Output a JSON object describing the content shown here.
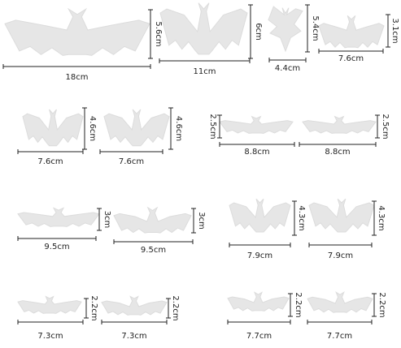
{
  "stickers": [
    {
      "name": "bat-large-18cm",
      "width_label": "18cm",
      "height_label": "5.6cm"
    },
    {
      "name": "bat-11cm",
      "width_label": "11cm",
      "height_label": "6cm"
    },
    {
      "name": "bat-4-4cm",
      "width_label": "4.4cm",
      "height_label": "5.4cm"
    },
    {
      "name": "bat-7-6cm-a",
      "width_label": "7.6cm",
      "height_label": "3.1cm"
    },
    {
      "name": "bat-7-6cm-b",
      "width_label": "7.6cm",
      "height_label": "4.6cm"
    },
    {
      "name": "bat-7-6cm-c",
      "width_label": "7.6cm",
      "height_label": "4.6cm"
    },
    {
      "name": "bat-8-8cm-a",
      "width_label": "8.8cm",
      "height_label": "2.5cm"
    },
    {
      "name": "bat-8-8cm-b",
      "width_label": "8.8cm",
      "height_label": "2.5cm"
    },
    {
      "name": "bat-9-5cm-a",
      "width_label": "9.5cm",
      "height_label": "3cm"
    },
    {
      "name": "bat-9-5cm-b",
      "width_label": "9.5cm",
      "height_label": "3cm"
    },
    {
      "name": "bat-7-9cm-a",
      "width_label": "7.9cm",
      "height_label": "4.3cm"
    },
    {
      "name": "bat-7-9cm-b",
      "width_label": "7.9cm",
      "height_label": "4.3cm"
    },
    {
      "name": "bat-7-3cm-a",
      "width_label": "7.3cm",
      "height_label": "2.2cm"
    },
    {
      "name": "bat-7-3cm-b",
      "width_label": "7.3cm",
      "height_label": "2.2cm"
    },
    {
      "name": "bat-7-7cm-a",
      "width_label": "7.7cm",
      "height_label": "2.2cm"
    },
    {
      "name": "bat-7-7cm-b",
      "width_label": "7.7cm",
      "height_label": "2.2cm"
    }
  ],
  "colors": {
    "bat_fill": "#e6e6e6",
    "dimension_line": "#222222"
  }
}
